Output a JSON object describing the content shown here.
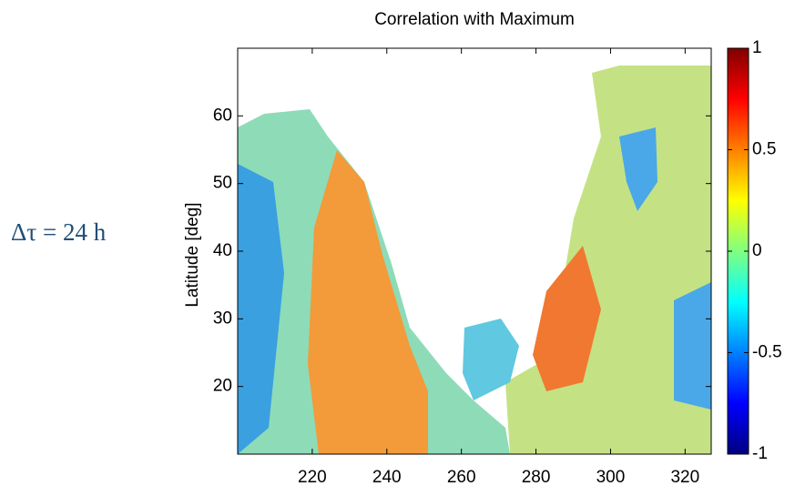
{
  "side_label": "Δτ = 24 h",
  "chart_data": {
    "type": "heatmap",
    "title": "Correlation with Maximum",
    "y_label": "Latitude [deg]",
    "xlim": [
      200,
      327
    ],
    "ylim": [
      10,
      70
    ],
    "xticks": [
      220,
      240,
      260,
      280,
      300,
      320
    ],
    "yticks": [
      20,
      30,
      40,
      50,
      60
    ],
    "colorbar": {
      "lim": [
        -1,
        1
      ],
      "ticks": [
        -1,
        -0.5,
        0,
        0.5,
        1
      ],
      "colormap": "jet"
    }
  }
}
